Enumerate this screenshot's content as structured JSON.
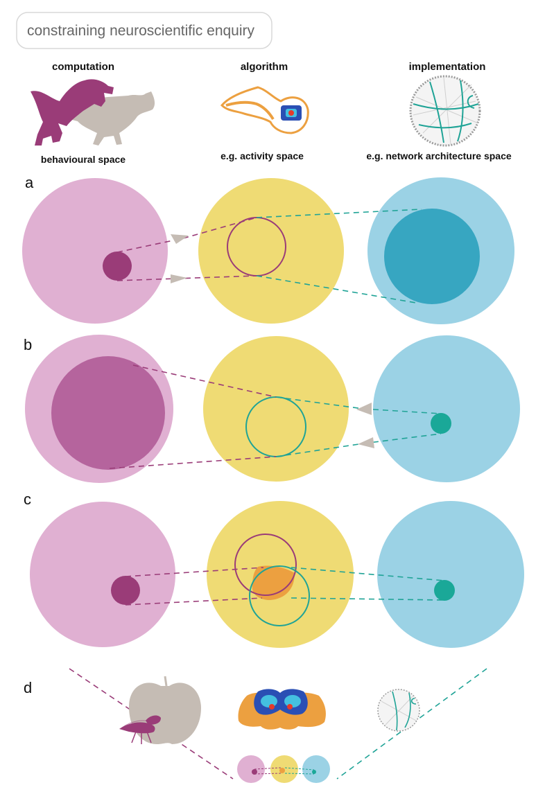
{
  "title": "constraining neuroscientific enquiry",
  "columns": [
    {
      "heading": "computation",
      "subheading": "behavioural space",
      "icon": "dinosaurs-icon"
    },
    {
      "heading": "algorithm",
      "subheading": "e.g. activity space",
      "icon": "zebrafish-activity-icon"
    },
    {
      "heading": "implementation",
      "subheading": "e.g. network architecture space",
      "icon": "connectome-network-icon"
    }
  ],
  "panels": [
    {
      "label": "a"
    },
    {
      "label": "b"
    },
    {
      "label": "c"
    },
    {
      "label": "d"
    }
  ],
  "colors": {
    "computation_outer": "#e0b0d2",
    "computation_inner": "#9a3c78",
    "computation_large_inner": "#b5649d",
    "algorithm_outer": "#efdb74",
    "algorithm_overlap": "#eca040",
    "implementation_outer": "#9bd2e5",
    "implementation_inner": "#37a6c1",
    "implementation_dot": "#1aa898",
    "purple_line": "#9a3c78",
    "teal_line": "#1fa396",
    "arrow_fill": "#c5bcb4",
    "silhouette_grey": "#c5bcb4",
    "fly_purple": "#9a3c78",
    "brain_orange": "#eca040"
  },
  "panel_d_icons": [
    "fly-on-apple-icon",
    "fly-brain-activity-icon",
    "fly-connectome-icon"
  ]
}
